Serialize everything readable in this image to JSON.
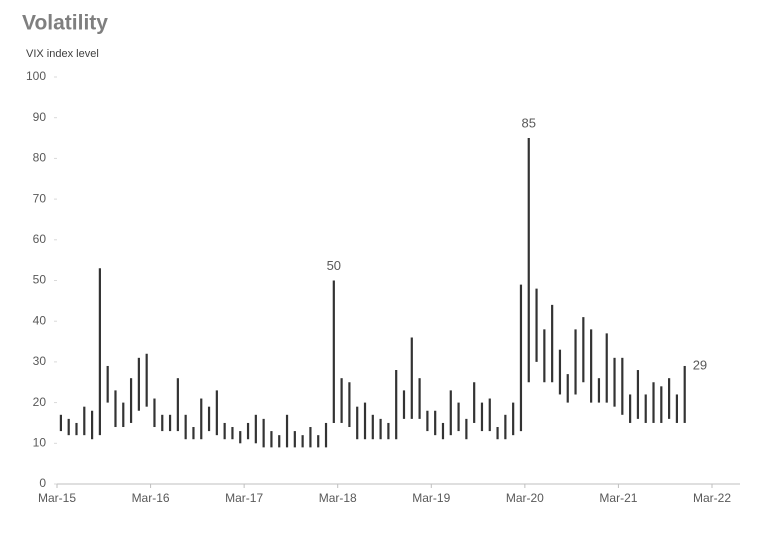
{
  "chart_data": {
    "type": "hilo",
    "title": "Volatility",
    "subtitle": "VIX index level",
    "x": [
      "2015-03",
      "2015-04",
      "2015-05",
      "2015-06",
      "2015-07",
      "2015-08",
      "2015-09",
      "2015-10",
      "2015-11",
      "2015-12",
      "2016-01",
      "2016-02",
      "2016-03",
      "2016-04",
      "2016-05",
      "2016-06",
      "2016-07",
      "2016-08",
      "2016-09",
      "2016-10",
      "2016-11",
      "2016-12",
      "2017-01",
      "2017-02",
      "2017-03",
      "2017-04",
      "2017-05",
      "2017-06",
      "2017-07",
      "2017-08",
      "2017-09",
      "2017-10",
      "2017-11",
      "2017-12",
      "2018-01",
      "2018-02",
      "2018-03",
      "2018-04",
      "2018-05",
      "2018-06",
      "2018-07",
      "2018-08",
      "2018-09",
      "2018-10",
      "2018-11",
      "2018-12",
      "2019-01",
      "2019-02",
      "2019-03",
      "2019-04",
      "2019-05",
      "2019-06",
      "2019-07",
      "2019-08",
      "2019-09",
      "2019-10",
      "2019-11",
      "2019-12",
      "2020-01",
      "2020-02",
      "2020-03",
      "2020-04",
      "2020-05",
      "2020-06",
      "2020-07",
      "2020-08",
      "2020-09",
      "2020-10",
      "2020-11",
      "2020-12",
      "2021-01",
      "2021-02",
      "2021-03",
      "2021-04",
      "2021-05",
      "2021-06",
      "2021-07",
      "2021-08",
      "2021-09",
      "2021-10",
      "2021-11"
    ],
    "high": [
      17,
      16,
      15,
      19,
      18,
      53,
      29,
      23,
      20,
      26,
      31,
      32,
      21,
      17,
      17,
      26,
      17,
      14,
      21,
      19,
      23,
      15,
      14,
      13,
      15,
      17,
      16,
      13,
      12,
      17,
      13,
      12,
      14,
      12,
      15,
      50,
      26,
      25,
      19,
      20,
      17,
      16,
      15,
      28,
      23,
      36,
      26,
      18,
      18,
      15,
      23,
      20,
      16,
      25,
      20,
      21,
      14,
      17,
      20,
      49,
      85,
      48,
      38,
      44,
      33,
      27,
      38,
      41,
      38,
      26,
      37,
      31,
      31,
      22,
      28,
      22,
      25,
      24,
      26,
      22,
      29
    ],
    "low": [
      13,
      12,
      12,
      12,
      11,
      12,
      20,
      14,
      14,
      15,
      18,
      19,
      14,
      13,
      13,
      13,
      11,
      11,
      11,
      13,
      12,
      11,
      11,
      10,
      11,
      10,
      9,
      9,
      9,
      9,
      9,
      9,
      9,
      9,
      9,
      15,
      15,
      14,
      11,
      11,
      11,
      11,
      11,
      11,
      16,
      16,
      16,
      13,
      12,
      11,
      12,
      13,
      11,
      15,
      13,
      13,
      11,
      11,
      12,
      13,
      25,
      30,
      25,
      25,
      22,
      20,
      22,
      25,
      20,
      20,
      20,
      19,
      17,
      15,
      16,
      15,
      15,
      15,
      16,
      15,
      15
    ],
    "color": "#333333",
    "xlim": [
      "2015-03",
      "2022-04"
    ],
    "xticks": [
      {
        "value": "2015-03",
        "label": "Mar-15"
      },
      {
        "value": "2016-03",
        "label": "Mar-16"
      },
      {
        "value": "2017-03",
        "label": "Mar-17"
      },
      {
        "value": "2018-03",
        "label": "Mar-18"
      },
      {
        "value": "2019-03",
        "label": "Mar-19"
      },
      {
        "value": "2020-03",
        "label": "Mar-20"
      },
      {
        "value": "2021-03",
        "label": "Mar-21"
      },
      {
        "value": "2022-03",
        "label": "Mar-22"
      }
    ],
    "ylim": [
      0,
      100
    ],
    "yticks": [
      0,
      10,
      20,
      30,
      40,
      50,
      60,
      70,
      80,
      90,
      100
    ],
    "annotations": [
      {
        "x": "2018-02",
        "value": 50
      },
      {
        "x": "2020-03",
        "value": 85
      },
      {
        "x": "2021-11",
        "value": 29
      }
    ]
  }
}
